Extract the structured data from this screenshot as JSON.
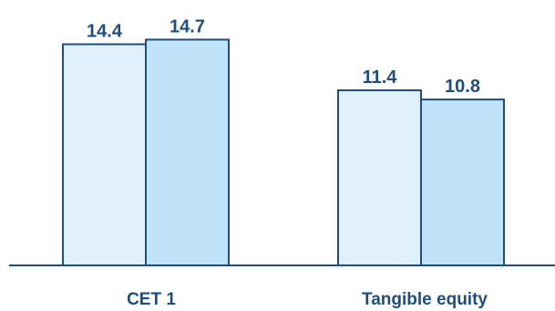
{
  "chart_data": {
    "type": "bar",
    "categories": [
      "CET 1",
      "Tangible equity"
    ],
    "series": [
      {
        "values": [
          14.4,
          11.4
        ]
      },
      {
        "values": [
          14.7,
          10.8
        ]
      }
    ],
    "title": "",
    "xlabel": "",
    "ylabel": "",
    "ylim": [
      0,
      15.5
    ],
    "grid": false,
    "legend": "none",
    "data_labels": true
  },
  "colors": {
    "series": [
      "#e0f0fc",
      "#bfe3f9"
    ],
    "stroke": "#1f4e79",
    "label": "#1f4e79",
    "axis": "#1f4e79"
  }
}
